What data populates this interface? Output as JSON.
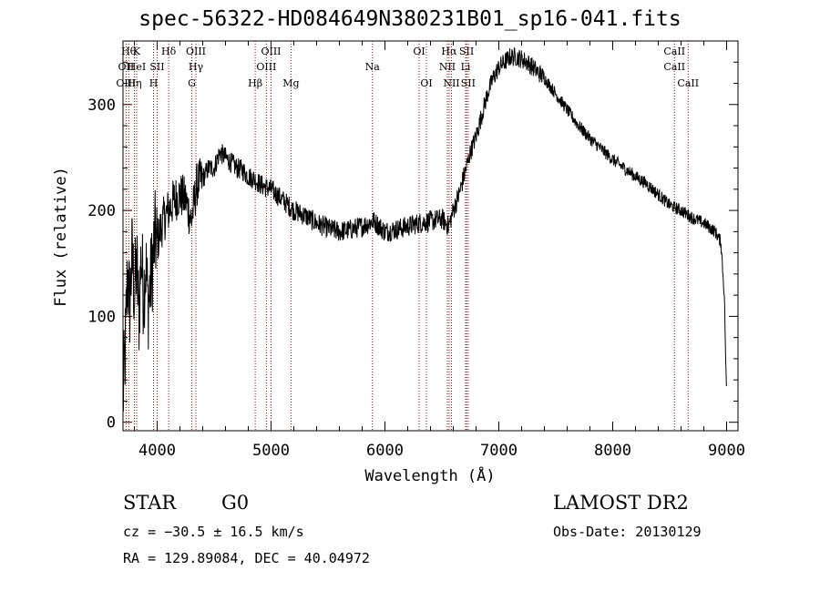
{
  "title": "spec-56322-HD084649N380231B01_sp16-041.fits",
  "chart_data": {
    "type": "line",
    "xlabel": "Wavelength (Å)",
    "ylabel": "Flux (relative)",
    "xlim": [
      3700,
      9100
    ],
    "ylim": [
      -8,
      360
    ],
    "xticks": [
      4000,
      5000,
      6000,
      7000,
      8000,
      9000
    ],
    "yticks": [
      0,
      100,
      200,
      300
    ],
    "grid": false,
    "line_color": "#000000",
    "marker_color": "#aa0000",
    "series": [
      {
        "x": [
          3700,
          3720,
          3740,
          3760,
          3780,
          3800,
          3820,
          3840,
          3860,
          3880,
          3900,
          3920,
          3940,
          3960,
          3980,
          4000,
          4050,
          4100,
          4150,
          4200,
          4250,
          4300,
          4350,
          4400,
          4450,
          4500,
          4550,
          4600,
          4650,
          4700,
          4750,
          4800,
          4850,
          4900,
          4950,
          5000,
          5100,
          5200,
          5300,
          5400,
          5500,
          5600,
          5700,
          5800,
          5900,
          6000,
          6100,
          6200,
          6300,
          6400,
          6500,
          6560,
          6600,
          6650,
          6700,
          6750,
          6800,
          6850,
          6900,
          6950,
          7000,
          7050,
          7100,
          7150,
          7200,
          7250,
          7300,
          7400,
          7500,
          7600,
          7700,
          7800,
          7900,
          8000,
          8100,
          8200,
          8300,
          8400,
          8500,
          8600,
          8700,
          8800,
          8900,
          8950,
          8980,
          9000
        ],
        "values": [
          20,
          70,
          140,
          110,
          160,
          120,
          150,
          100,
          160,
          120,
          150,
          110,
          130,
          150,
          175,
          170,
          190,
          200,
          210,
          215,
          210,
          190,
          225,
          230,
          240,
          240,
          255,
          250,
          245,
          240,
          238,
          232,
          230,
          225,
          222,
          220,
          210,
          200,
          195,
          188,
          183,
          180,
          182,
          185,
          190,
          180,
          182,
          185,
          188,
          190,
          192,
          185,
          200,
          215,
          235,
          255,
          270,
          290,
          310,
          325,
          335,
          340,
          345,
          345,
          343,
          340,
          335,
          325,
          310,
          295,
          280,
          268,
          258,
          248,
          240,
          232,
          225,
          215,
          205,
          200,
          193,
          188,
          180,
          170,
          120,
          20
        ]
      }
    ],
    "lines_top_row1": [
      {
        "x": 3750,
        "label": "Hθ"
      },
      {
        "x": 3820,
        "label": "K"
      },
      {
        "x": 4101,
        "label": "Hδ"
      },
      {
        "x": 4340,
        "label": "OIII"
      },
      {
        "x": 5000,
        "label": "OIII"
      },
      {
        "x": 6300,
        "label": "OI"
      },
      {
        "x": 6563,
        "label": "Hα"
      },
      {
        "x": 6717,
        "label": "SII"
      },
      {
        "x": 8542,
        "label": "CaII"
      }
    ],
    "lines_top_row2": [
      {
        "x": 3727,
        "label": "OII"
      },
      {
        "x": 3820,
        "label": "HeI"
      },
      {
        "x": 4000,
        "label": "SII"
      },
      {
        "x": 4340,
        "label": "Hγ"
      },
      {
        "x": 4959,
        "label": "OIII"
      },
      {
        "x": 5890,
        "label": "Na"
      },
      {
        "x": 6548,
        "label": "NII"
      },
      {
        "x": 6708,
        "label": "Li"
      },
      {
        "x": 8542,
        "label": "CaII"
      }
    ],
    "lines_top_row3": [
      {
        "x": 3727,
        "label": "OIII"
      },
      {
        "x": 3800,
        "label": "Hη"
      },
      {
        "x": 3968,
        "label": "H"
      },
      {
        "x": 4304,
        "label": "G"
      },
      {
        "x": 4861,
        "label": "Hβ"
      },
      {
        "x": 5175,
        "label": "Mg"
      },
      {
        "x": 6364,
        "label": "OI"
      },
      {
        "x": 6584,
        "label": "NII"
      },
      {
        "x": 6731,
        "label": "SII"
      },
      {
        "x": 8662,
        "label": "CaII"
      }
    ]
  },
  "info": {
    "object_class": "STAR",
    "subclass": "G0",
    "survey": "LAMOST DR2",
    "cz": "cz = −30.5 ± 16.5 km/s",
    "obs_date": "Obs-Date: 20130129",
    "coords": "RA = 129.89084, DEC =  40.04972"
  }
}
